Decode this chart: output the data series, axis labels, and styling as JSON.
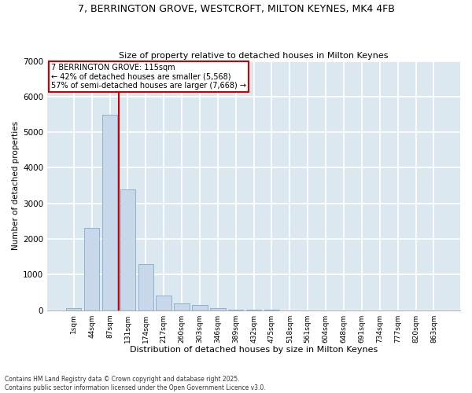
{
  "title1": "7, BERRINGTON GROVE, WESTCROFT, MILTON KEYNES, MK4 4FB",
  "title2": "Size of property relative to detached houses in Milton Keynes",
  "xlabel": "Distribution of detached houses by size in Milton Keynes",
  "ylabel": "Number of detached properties",
  "bar_color": "#c8d8ea",
  "bar_edge_color": "#8ab4d4",
  "background_color": "#dce8f0",
  "fig_background": "#ffffff",
  "grid_color": "#ffffff",
  "categories": [
    "1sqm",
    "44sqm",
    "87sqm",
    "131sqm",
    "174sqm",
    "217sqm",
    "260sqm",
    "303sqm",
    "346sqm",
    "389sqm",
    "432sqm",
    "475sqm",
    "518sqm",
    "561sqm",
    "604sqm",
    "648sqm",
    "691sqm",
    "734sqm",
    "777sqm",
    "820sqm",
    "863sqm"
  ],
  "values": [
    50,
    2300,
    5500,
    3400,
    1300,
    400,
    200,
    150,
    50,
    15,
    5,
    3,
    2,
    1,
    1,
    0,
    0,
    0,
    0,
    0,
    0
  ],
  "ylim": [
    0,
    7000
  ],
  "yticks": [
    0,
    1000,
    2000,
    3000,
    4000,
    5000,
    6000,
    7000
  ],
  "vline_x": 2.5,
  "vline_color": "#cc0000",
  "annotation_title": "7 BERRINGTON GROVE: 115sqm",
  "annotation_line1": "← 42% of detached houses are smaller (5,568)",
  "annotation_line2": "57% of semi-detached houses are larger (7,668) →",
  "footer1": "Contains HM Land Registry data © Crown copyright and database right 2025.",
  "footer2": "Contains public sector information licensed under the Open Government Licence v3.0."
}
